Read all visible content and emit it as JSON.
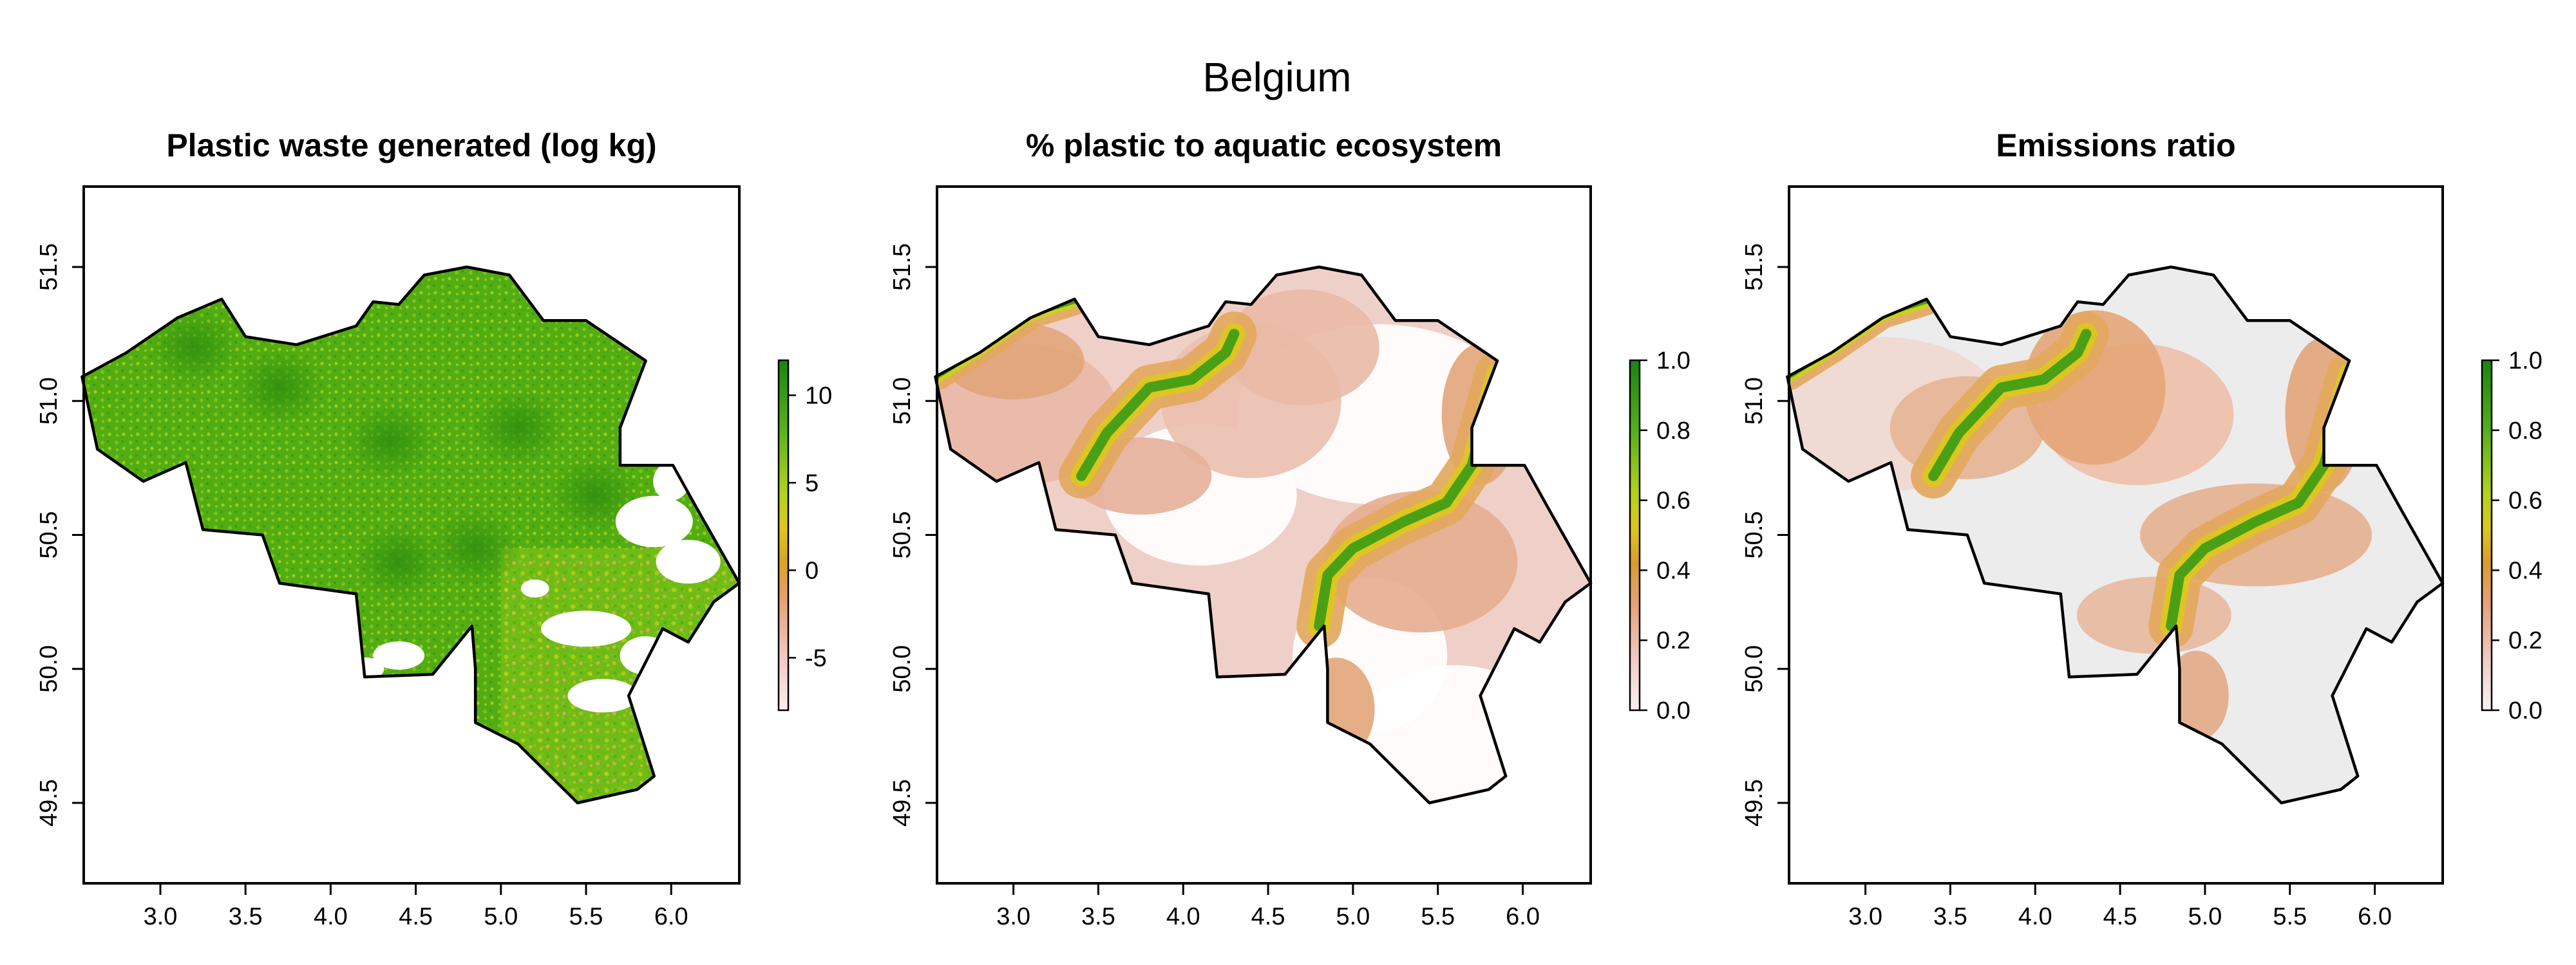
{
  "figure": {
    "title": "Belgium"
  },
  "colors": {
    "legend_stops": [
      "#f5f5f5",
      "#f2c6c0",
      "#e8a584",
      "#d8952e",
      "#e0c51a",
      "#a8cc1c",
      "#5ab21a",
      "#1e8a10"
    ],
    "river_green": "#3f9e15",
    "land_green": "#4daa10",
    "low_pink": "#efcfc8",
    "mid_orange": "#e2a57a",
    "empty_grey": "#ececec"
  },
  "chart_data": [
    {
      "type": "heatmap",
      "title": "Plastic waste generated (log kg)",
      "xlabel": "",
      "ylabel": "",
      "xlim": [
        2.55,
        6.4
      ],
      "ylim": [
        49.2,
        51.8
      ],
      "xticks": [
        "3.0",
        "3.5",
        "4.0",
        "4.5",
        "5.0",
        "5.5",
        "6.0"
      ],
      "yticks": [
        "49.5",
        "50.0",
        "50.5",
        "51.0",
        "51.5"
      ],
      "legend": {
        "min": -8,
        "max": 12,
        "ticks": [
          "10",
          "5",
          "0",
          "-5"
        ],
        "tick_values": [
          10,
          5,
          0,
          -5
        ]
      }
    },
    {
      "type": "heatmap",
      "title": "% plastic to aquatic ecosystem",
      "xlabel": "",
      "ylabel": "",
      "xlim": [
        2.55,
        6.4
      ],
      "ylim": [
        49.2,
        51.8
      ],
      "xticks": [
        "3.0",
        "3.5",
        "4.0",
        "4.5",
        "5.0",
        "5.5",
        "6.0"
      ],
      "yticks": [
        "49.5",
        "50.0",
        "50.5",
        "51.0",
        "51.5"
      ],
      "legend": {
        "min": 0,
        "max": 1,
        "ticks": [
          "1.0",
          "0.8",
          "0.6",
          "0.4",
          "0.2",
          "0.0"
        ],
        "tick_values": [
          1.0,
          0.8,
          0.6,
          0.4,
          0.2,
          0.0
        ]
      }
    },
    {
      "type": "heatmap",
      "title": "Emissions ratio",
      "xlabel": "",
      "ylabel": "",
      "xlim": [
        2.55,
        6.4
      ],
      "ylim": [
        49.2,
        51.8
      ],
      "xticks": [
        "3.0",
        "3.5",
        "4.0",
        "4.5",
        "5.0",
        "5.5",
        "6.0"
      ],
      "yticks": [
        "49.5",
        "50.0",
        "50.5",
        "51.0",
        "51.5"
      ],
      "legend": {
        "min": 0,
        "max": 1,
        "ticks": [
          "1.0",
          "0.8",
          "0.6",
          "0.4",
          "0.2",
          "0.0"
        ],
        "tick_values": [
          1.0,
          0.8,
          0.6,
          0.4,
          0.2,
          0.0
        ]
      }
    }
  ]
}
